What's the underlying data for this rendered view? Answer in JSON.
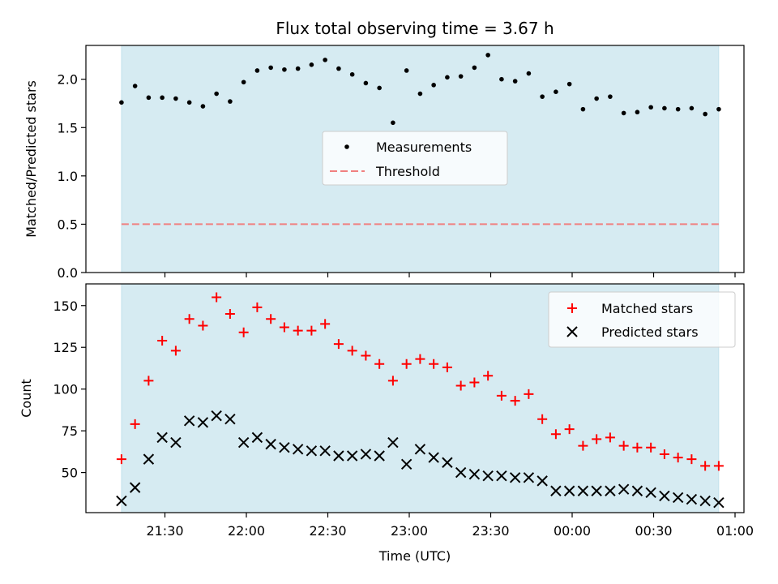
{
  "title": "Flux total observing time = 3.67 h",
  "xlabel": "Time (UTC)",
  "x_ticks": [
    "21:30",
    "22:00",
    "22:30",
    "23:00",
    "23:30",
    "00:00",
    "00:30",
    "01:00"
  ],
  "colors": {
    "observing_span": "#add8e6",
    "measurements": "#000000",
    "threshold": "#f08080",
    "matched": "#ff0000",
    "predicted": "#000000"
  },
  "chart_data": [
    {
      "type": "scatter",
      "ylabel": "Matched/Predicted stars",
      "ylim": [
        0,
        2.35
      ],
      "y_ticks": [
        "0.0",
        "0.5",
        "1.0",
        "1.5",
        "2.0"
      ],
      "legend_position": "center",
      "observing_span": [
        "21:14",
        "24:54"
      ],
      "threshold": 0.5,
      "series": [
        {
          "name": "Measurements",
          "marker": "dot",
          "x": [
            "21:14",
            "21:19",
            "21:24",
            "21:29",
            "21:34",
            "21:39",
            "21:44",
            "21:49",
            "21:54",
            "21:59",
            "22:04",
            "22:09",
            "22:14",
            "22:19",
            "22:24",
            "22:29",
            "22:34",
            "22:39",
            "22:44",
            "22:49",
            "22:54",
            "22:59",
            "23:04",
            "23:09",
            "23:14",
            "23:19",
            "23:24",
            "23:29",
            "23:34",
            "23:39",
            "23:44",
            "23:49",
            "23:54",
            "23:59",
            "00:04",
            "00:09",
            "00:14",
            "00:19",
            "00:24",
            "00:29",
            "00:34",
            "00:39",
            "00:44",
            "00:49",
            "00:54"
          ],
          "y": [
            1.76,
            1.93,
            1.81,
            1.81,
            1.8,
            1.76,
            1.72,
            1.85,
            1.77,
            1.97,
            2.09,
            2.12,
            2.1,
            2.11,
            2.15,
            2.2,
            2.11,
            2.05,
            1.96,
            1.91,
            1.55,
            2.09,
            1.85,
            1.94,
            2.02,
            2.03,
            2.12,
            2.25,
            2.0,
            1.98,
            2.06,
            1.82,
            1.87,
            1.95,
            1.69,
            1.8,
            1.82,
            1.65,
            1.66,
            1.71,
            1.7,
            1.69,
            1.7,
            1.64,
            1.69
          ]
        },
        {
          "name": "Threshold",
          "marker": "dashed-line",
          "x": [
            "21:14",
            "00:54"
          ],
          "y": [
            0.5,
            0.5
          ]
        }
      ]
    },
    {
      "type": "scatter",
      "ylabel": "Count",
      "ylim": [
        26,
        163
      ],
      "y_ticks": [
        "50",
        "75",
        "100",
        "125",
        "150"
      ],
      "legend_position": "top-right",
      "observing_span": [
        "21:14",
        "24:54"
      ],
      "series": [
        {
          "name": "Matched stars",
          "marker": "plus",
          "x": [
            "21:14",
            "21:19",
            "21:24",
            "21:29",
            "21:34",
            "21:39",
            "21:44",
            "21:49",
            "21:54",
            "21:59",
            "22:04",
            "22:09",
            "22:14",
            "22:19",
            "22:24",
            "22:29",
            "22:34",
            "22:39",
            "22:44",
            "22:49",
            "22:54",
            "22:59",
            "23:04",
            "23:09",
            "23:14",
            "23:19",
            "23:24",
            "23:29",
            "23:34",
            "23:39",
            "23:44",
            "23:49",
            "23:54",
            "23:59",
            "00:04",
            "00:09",
            "00:14",
            "00:19",
            "00:24",
            "00:29",
            "00:34",
            "00:39",
            "00:44",
            "00:49",
            "00:54"
          ],
          "y": [
            58,
            79,
            105,
            129,
            123,
            142,
            138,
            155,
            145,
            134,
            149,
            142,
            137,
            135,
            135,
            139,
            127,
            123,
            120,
            115,
            105,
            115,
            118,
            115,
            113,
            102,
            104,
            108,
            96,
            93,
            97,
            82,
            73,
            76,
            66,
            70,
            71,
            66,
            65,
            65,
            61,
            59,
            58,
            54,
            54
          ]
        },
        {
          "name": "Predicted stars",
          "marker": "x",
          "x": [
            "21:14",
            "21:19",
            "21:24",
            "21:29",
            "21:34",
            "21:39",
            "21:44",
            "21:49",
            "21:54",
            "21:59",
            "22:04",
            "22:09",
            "22:14",
            "22:19",
            "22:24",
            "22:29",
            "22:34",
            "22:39",
            "22:44",
            "22:49",
            "22:54",
            "22:59",
            "23:04",
            "23:09",
            "23:14",
            "23:19",
            "23:24",
            "23:29",
            "23:34",
            "23:39",
            "23:44",
            "23:49",
            "23:54",
            "23:59",
            "00:04",
            "00:09",
            "00:14",
            "00:19",
            "00:24",
            "00:29",
            "00:34",
            "00:39",
            "00:44",
            "00:49",
            "00:54"
          ],
          "y": [
            33,
            41,
            58,
            71,
            68,
            81,
            80,
            84,
            82,
            68,
            71,
            67,
            65,
            64,
            63,
            63,
            60,
            60,
            61,
            60,
            68,
            55,
            64,
            59,
            56,
            50,
            49,
            48,
            48,
            47,
            47,
            45,
            39,
            39,
            39,
            39,
            39,
            40,
            39,
            38,
            36,
            35,
            34,
            33,
            32
          ]
        }
      ]
    }
  ]
}
